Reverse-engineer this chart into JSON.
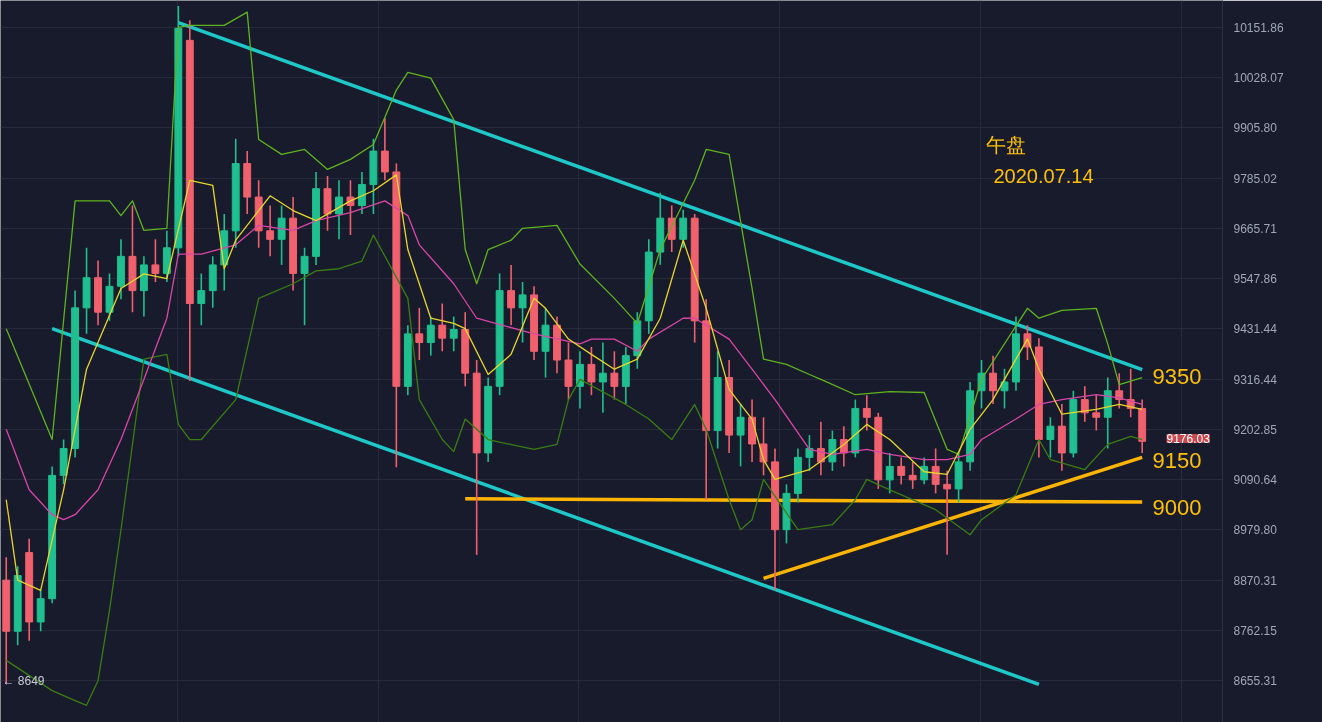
{
  "chart_data": {
    "type": "candlestick",
    "title": "午盘",
    "subtitle": "2020.07.14",
    "categories": [
      null,
      null,
      null,
      null,
      null,
      null,
      null,
      null,
      null,
      null,
      null,
      null,
      null,
      null,
      null,
      null,
      null,
      null,
      null,
      null,
      null,
      null,
      null,
      null,
      null,
      null,
      null,
      null,
      null,
      null,
      null,
      null,
      null,
      null,
      null,
      null,
      null,
      null,
      null,
      null,
      null,
      null,
      null,
      null,
      null,
      null,
      null,
      null,
      null,
      null,
      null,
      null,
      null,
      null,
      null,
      null,
      null,
      null,
      null,
      null,
      null,
      null,
      null,
      null,
      null,
      null,
      null,
      null,
      null,
      null,
      null,
      null,
      null,
      null,
      null,
      null,
      null,
      null,
      null,
      null,
      null,
      null,
      null,
      null,
      null,
      null,
      null,
      null,
      null,
      null,
      null,
      null,
      null,
      null,
      null,
      null,
      null,
      null,
      null,
      null
    ],
    "colors": [
      "#f0616d",
      "#1fbf8f",
      "#f0616d",
      "#1fbf8f",
      "#1fbf8f",
      "#1fbf8f",
      "#1fbf8f",
      "#1fbf8f",
      "#f0616d",
      "#1fbf8f",
      "#1fbf8f",
      "#f0616d",
      "#1fbf8f",
      "#f0616d",
      "#1fbf8f",
      "#1fbf8f",
      "#f0616d",
      "#1fbf8f",
      "#1fbf8f",
      "#1fbf8f",
      "#1fbf8f",
      "#f0616d",
      "#f0616d",
      "#f0616d",
      "#1fbf8f",
      "#f0616d",
      "#1fbf8f",
      "#1fbf8f",
      "#f0616d",
      "#1fbf8f",
      "#f0616d",
      "#1fbf8f",
      "#1fbf8f",
      "#f0616d",
      "#f0616d",
      "#1fbf8f",
      "#f0616d",
      "#1fbf8f",
      "#f0616d",
      "#1fbf8f",
      "#f0616d",
      "#f0616d",
      "#1fbf8f",
      "#1fbf8f",
      "#f0616d",
      "#1fbf8f",
      "#f0616d",
      "#1fbf8f",
      "#f0616d",
      "#f0616d",
      "#1fbf8f",
      "#f0616d",
      "#1fbf8f",
      "#f0616d",
      "#1fbf8f",
      "#1fbf8f",
      "#1fbf8f",
      "#1fbf8f",
      "#f0616d",
      "#1fbf8f",
      "#f0616d",
      "#f0616d",
      "#1fbf8f",
      "#f0616d",
      "#1fbf8f",
      "#f0616d",
      "#f0616d",
      "#f0616d",
      "#1fbf8f",
      "#1fbf8f",
      "#1fbf8f",
      "#f0616d",
      "#1fbf8f",
      "#f0616d",
      "#1fbf8f",
      "#f0616d",
      "#f0616d",
      "#1fbf8f",
      "#f0616d",
      "#f0616d",
      "#1fbf8f",
      "#f0616d",
      "#f0616d",
      "#1fbf8f",
      "#1fbf8f",
      "#1fbf8f",
      "#f0616d",
      "#1fbf8f",
      "#1fbf8f",
      "#f0616d",
      "#f0616d",
      "#1fbf8f",
      "#f0616d",
      "#1fbf8f",
      "#f0616d",
      "#f0616d",
      "#1fbf8f",
      "#f0616d",
      "#f0616d",
      "#f0616d"
    ],
    "ohlc": [
      [
        8870,
        8920,
        8649,
        8760
      ],
      [
        8760,
        8900,
        8730,
        8880
      ],
      [
        8930,
        8960,
        8740,
        8780
      ],
      [
        8780,
        8850,
        8760,
        8830
      ],
      [
        8830,
        9120,
        8820,
        9100
      ],
      [
        9100,
        9180,
        9080,
        9160
      ],
      [
        9160,
        9520,
        9140,
        9480
      ],
      [
        9480,
        9620,
        9420,
        9550
      ],
      [
        9550,
        9590,
        9440,
        9470
      ],
      [
        9470,
        9560,
        9450,
        9530
      ],
      [
        9530,
        9640,
        9500,
        9600
      ],
      [
        9600,
        9720,
        9470,
        9520
      ],
      [
        9520,
        9600,
        9460,
        9580
      ],
      [
        9580,
        9640,
        9540,
        9560
      ],
      [
        9560,
        9660,
        9540,
        9620
      ],
      [
        9620,
        10205,
        9600,
        10150
      ],
      [
        10120,
        10170,
        9312,
        9490
      ],
      [
        9490,
        9560,
        9440,
        9520
      ],
      [
        9520,
        9600,
        9480,
        9580
      ],
      [
        9580,
        9700,
        9520,
        9660
      ],
      [
        9660,
        9880,
        9620,
        9820
      ],
      [
        9820,
        9850,
        9700,
        9740
      ],
      [
        9740,
        9780,
        9620,
        9660
      ],
      [
        9660,
        9720,
        9600,
        9640
      ],
      [
        9640,
        9720,
        9580,
        9690
      ],
      [
        9690,
        9740,
        9520,
        9560
      ],
      [
        9560,
        9620,
        9440,
        9600
      ],
      [
        9600,
        9800,
        9580,
        9760
      ],
      [
        9760,
        9790,
        9660,
        9700
      ],
      [
        9700,
        9780,
        9640,
        9740
      ],
      [
        9740,
        9780,
        9650,
        9720
      ],
      [
        9720,
        9800,
        9700,
        9770
      ],
      [
        9770,
        9880,
        9700,
        9850
      ],
      [
        9850,
        9930,
        9780,
        9800
      ],
      [
        9800,
        9820,
        9118,
        9300
      ],
      [
        9300,
        9440,
        9280,
        9420
      ],
      [
        9420,
        9480,
        9360,
        9400
      ],
      [
        9400,
        9460,
        9370,
        9440
      ],
      [
        9440,
        9490,
        9380,
        9410
      ],
      [
        9410,
        9460,
        9380,
        9430
      ],
      [
        9430,
        9470,
        9300,
        9330
      ],
      [
        9330,
        9360,
        8925,
        9150
      ],
      [
        9150,
        9320,
        9130,
        9300
      ],
      [
        9300,
        9560,
        9280,
        9520
      ],
      [
        9520,
        9580,
        9440,
        9480
      ],
      [
        9480,
        9540,
        9400,
        9510
      ],
      [
        9510,
        9530,
        9360,
        9380
      ],
      [
        9380,
        9480,
        9320,
        9440
      ],
      [
        9440,
        9460,
        9330,
        9360
      ],
      [
        9360,
        9400,
        9270,
        9300
      ],
      [
        9300,
        9380,
        9250,
        9350
      ],
      [
        9350,
        9390,
        9280,
        9310
      ],
      [
        9310,
        9400,
        9240,
        9330
      ],
      [
        9330,
        9380,
        9270,
        9300
      ],
      [
        9300,
        9390,
        9260,
        9370
      ],
      [
        9370,
        9470,
        9340,
        9450
      ],
      [
        9450,
        9640,
        9420,
        9610
      ],
      [
        9610,
        9750,
        9580,
        9690
      ],
      [
        9690,
        9720,
        9610,
        9640
      ],
      [
        9640,
        9710,
        9620,
        9690
      ],
      [
        9690,
        9700,
        9400,
        9450
      ],
      [
        9450,
        9500,
        9046,
        9200
      ],
      [
        9200,
        9380,
        9160,
        9320
      ],
      [
        9320,
        9360,
        9150,
        9190
      ],
      [
        9190,
        9260,
        9120,
        9230
      ],
      [
        9230,
        9270,
        9130,
        9170
      ],
      [
        9170,
        9230,
        9100,
        9130
      ],
      [
        9130,
        9160,
        8848,
        8980
      ],
      [
        8980,
        9080,
        8950,
        9060
      ],
      [
        9060,
        9160,
        9040,
        9140
      ],
      [
        9140,
        9190,
        9110,
        9160
      ],
      [
        9160,
        9220,
        9100,
        9130
      ],
      [
        9130,
        9200,
        9110,
        9180
      ],
      [
        9180,
        9210,
        9120,
        9150
      ],
      [
        9150,
        9270,
        9140,
        9250
      ],
      [
        9250,
        9280,
        9200,
        9230
      ],
      [
        9230,
        9240,
        9070,
        9090
      ],
      [
        9090,
        9150,
        9060,
        9120
      ],
      [
        9120,
        9140,
        9080,
        9100
      ],
      [
        9100,
        9130,
        9070,
        9090
      ],
      [
        9090,
        9140,
        9080,
        9120
      ],
      [
        9120,
        9160,
        9060,
        9080
      ],
      [
        9080,
        9110,
        8925,
        9070
      ],
      [
        9070,
        9150,
        9040,
        9130
      ],
      [
        9130,
        9310,
        9110,
        9290
      ],
      [
        9290,
        9360,
        9250,
        9330
      ],
      [
        9330,
        9370,
        9260,
        9290
      ],
      [
        9290,
        9340,
        9250,
        9310
      ],
      [
        9310,
        9460,
        9290,
        9420
      ],
      [
        9420,
        9440,
        9360,
        9390
      ],
      [
        9390,
        9410,
        9140,
        9180
      ],
      [
        9180,
        9230,
        9140,
        9210
      ],
      [
        9210,
        9260,
        9110,
        9150
      ],
      [
        9150,
        9290,
        9140,
        9270
      ],
      [
        9270,
        9300,
        9220,
        9240
      ],
      [
        9240,
        9280,
        9200,
        9230
      ],
      [
        9230,
        9320,
        9160,
        9290
      ],
      [
        9290,
        9330,
        9250,
        9270
      ],
      [
        9270,
        9340,
        9230,
        9250
      ],
      [
        9250,
        9270,
        9150,
        9176.03
      ]
    ],
    "series": [
      {
        "type": "line",
        "color": "#5fb31f",
        "values": [
          9432,
          null,
          null,
          null,
          9180,
          null,
          9731,
          null,
          null,
          9731,
          9696,
          9731,
          9661,
          null,
          9666,
          10152,
          10157,
          null,
          null,
          10157,
          null,
          10190,
          9878,
          null,
          9842,
          null,
          9854,
          null,
          9806,
          null,
          9830,
          null,
          9866,
          null,
          9998,
          10041,
          null,
          10027,
          null,
          9926,
          9616,
          9536,
          9616,
          null,
          9638,
          9666,
          null,
          null,
          9673,
          null,
          9582,
          null,
          null,
          9502,
          null,
          9444,
          null,
          9616,
          null,
          null,
          9780,
          9854,
          null,
          9842,
          null,
          9525,
          9362,
          null,
          9350,
          null,
          9327,
          9316,
          null,
          null,
          9281,
          null,
          null,
          9288,
          null,
          null,
          9286,
          null,
          9158,
          9147,
          null,
          9316,
          null,
          null,
          null,
          9479,
          9456,
          null,
          9474,
          null,
          null,
          9479,
          9397,
          9304,
          null,
          9320
        ]
      },
      {
        "type": "line",
        "color": "#3a7d12",
        "values": [
          8698,
          null,
          null,
          null,
          8634,
          null,
          8613,
          8603,
          8655,
          8805,
          8980,
          null,
          9362,
          null,
          9373,
          9214,
          9180,
          9180,
          null,
          null,
          9270,
          null,
          9502,
          null,
          null,
          9536,
          null,
          9566,
          null,
          9571,
          null,
          9589,
          9650,
          null,
          null,
          9502,
          9270,
          null,
          9180,
          9153,
          9226,
          null,
          9180,
          9174,
          null,
          null,
          9158,
          null,
          9169,
          9270,
          9316,
          null,
          null,
          null,
          9259,
          null,
          9226,
          null,
          9180,
          null,
          9259,
          9203,
          null,
          9046,
          8980,
          9002,
          9091,
          null,
          null,
          8980,
          null,
          null,
          8991,
          null,
          9046,
          9091,
          null,
          9068,
          null,
          null,
          null,
          9024,
          null,
          null,
          8969,
          9002,
          null,
          null,
          9057,
          null,
          9180,
          9135,
          null,
          null,
          9113,
          null,
          9169,
          null,
          9187,
          9180
        ]
      },
      {
        "type": "line",
        "color": "#d946a8",
        "values": [
          9203,
          null,
          9068,
          null,
          9013,
          9002,
          9013,
          null,
          9068,
          null,
          9180,
          null,
          9316,
          null,
          9456,
          9605,
          null,
          9605,
          null,
          null,
          9627,
          null,
          9673,
          null,
          null,
          9661,
          null,
          9684,
          null,
          null,
          9703,
          null,
          null,
          9731,
          null,
          9696,
          9627,
          null,
          null,
          9536,
          null,
          9456,
          null,
          null,
          null,
          null,
          9420,
          null,
          null,
          null,
          9397,
          9408,
          null,
          9408,
          null,
          9380,
          9408,
          null,
          null,
          9456,
          9456,
          null,
          null,
          9408,
          null,
          9339,
          null,
          9270,
          null,
          null,
          9158,
          null,
          9147,
          null,
          null,
          9158,
          null,
          9147,
          null,
          null,
          9135,
          null,
          9135,
          null,
          9147,
          9180,
          null,
          null,
          9226,
          null,
          9259,
          null,
          9270,
          null,
          null,
          9281,
          null,
          9274,
          null,
          9259
        ]
      },
      {
        "type": "line",
        "color": "#e8d52a",
        "values": [
          9046,
          8870,
          null,
          8848,
          null,
          9068,
          null,
          9339,
          null,
          null,
          9525,
          null,
          9559,
          null,
          9548,
          null,
          9780,
          null,
          9768,
          9571,
          9638,
          null,
          null,
          9743,
          null,
          9708,
          null,
          9684,
          null,
          null,
          9731,
          null,
          9755,
          null,
          9793,
          9616,
          null,
          9456,
          null,
          9444,
          9432,
          null,
          9327,
          null,
          9373,
          null,
          9502,
          9479,
          null,
          9408,
          null,
          9373,
          null,
          9339,
          null,
          9362,
          null,
          9456,
          null,
          9638,
          null,
          9479,
          null,
          9293,
          null,
          9226,
          9135,
          9091,
          null,
          null,
          9113,
          null,
          null,
          9169,
          null,
          9214,
          null,
          9180,
          null,
          null,
          9108,
          null,
          9102,
          null,
          9203,
          null,
          9270,
          null,
          null,
          9408,
          9339,
          null,
          9237,
          null,
          null,
          9248,
          null,
          9259,
          null,
          9248
        ]
      },
      {
        "type": "line",
        "color": "#1fc8c8",
        "values": [
          null,
          null,
          null,
          null,
          null,
          null,
          null,
          null,
          null,
          null,
          null,
          null,
          null,
          null,
          null,
          10164,
          null,
          null,
          null,
          null,
          null,
          null,
          null,
          null,
          null,
          null,
          null,
          null,
          null,
          null,
          null,
          null,
          null,
          null,
          null,
          null,
          null,
          null,
          null,
          null,
          null,
          null,
          null,
          null,
          null,
          null,
          null,
          null,
          null,
          null,
          null,
          null,
          null,
          null,
          null,
          null,
          null,
          null,
          null,
          null,
          null,
          null,
          null,
          null,
          null,
          null,
          null,
          null,
          null,
          null,
          null,
          null,
          null,
          null,
          null,
          null,
          null,
          null,
          null,
          null,
          null,
          null,
          null,
          null,
          null,
          null,
          null,
          null,
          null,
          null,
          null,
          null,
          null,
          null,
          null,
          null,
          null,
          null,
          null,
          9338
        ]
      },
      {
        "type": "line",
        "color": "#1fc8c8",
        "values": [
          null,
          null,
          null,
          null,
          9432,
          null,
          null,
          null,
          null,
          null,
          null,
          null,
          null,
          null,
          null,
          null,
          null,
          null,
          null,
          null,
          null,
          null,
          null,
          null,
          null,
          null,
          null,
          null,
          null,
          null,
          null,
          null,
          null,
          null,
          null,
          null,
          null,
          null,
          null,
          null,
          null,
          null,
          null,
          null,
          null,
          null,
          null,
          null,
          null,
          null,
          null,
          null,
          null,
          null,
          null,
          null,
          null,
          null,
          null,
          null,
          null,
          null,
          null,
          null,
          null,
          null,
          null,
          null,
          null,
          null,
          null,
          null,
          null,
          null,
          null,
          null,
          null,
          null,
          null,
          null,
          null,
          null,
          null,
          null,
          null,
          null,
          null,
          null,
          null,
          null,
          8647,
          null,
          null,
          null,
          null,
          null,
          null,
          null,
          null,
          null
        ]
      },
      {
        "type": "line",
        "color": "#ffb400",
        "values": [
          null,
          null,
          null,
          null,
          null,
          null,
          null,
          null,
          null,
          null,
          null,
          null,
          null,
          null,
          null,
          null,
          null,
          null,
          null,
          null,
          null,
          null,
          null,
          null,
          null,
          null,
          null,
          null,
          null,
          null,
          null,
          null,
          null,
          null,
          null,
          null,
          null,
          null,
          null,
          null,
          9048,
          null,
          null,
          null,
          null,
          null,
          null,
          null,
          null,
          null,
          null,
          null,
          null,
          null,
          null,
          null,
          null,
          null,
          null,
          null,
          null,
          null,
          null,
          null,
          null,
          null,
          null,
          null,
          null,
          null,
          null,
          null,
          null,
          null,
          null,
          null,
          null,
          null,
          null,
          null,
          null,
          null,
          null,
          null,
          null,
          null,
          null,
          null,
          null,
          null,
          null,
          null,
          null,
          null,
          null,
          null,
          null,
          null,
          null,
          9041
        ]
      },
      {
        "type": "line",
        "color": "#ffb400",
        "values": [
          null,
          null,
          null,
          null,
          null,
          null,
          null,
          null,
          null,
          null,
          null,
          null,
          null,
          null,
          null,
          null,
          null,
          null,
          null,
          null,
          null,
          null,
          null,
          null,
          null,
          null,
          null,
          null,
          null,
          null,
          null,
          null,
          null,
          null,
          null,
          null,
          null,
          null,
          null,
          null,
          null,
          null,
          null,
          null,
          null,
          null,
          null,
          null,
          null,
          null,
          null,
          null,
          null,
          null,
          null,
          null,
          null,
          null,
          null,
          null,
          null,
          null,
          null,
          null,
          null,
          null,
          8874,
          null,
          null,
          null,
          null,
          null,
          null,
          null,
          null,
          null,
          null,
          null,
          null,
          null,
          null,
          null,
          null,
          null,
          null,
          null,
          null,
          null,
          null,
          null,
          null,
          null,
          null,
          null,
          null,
          null,
          null,
          null,
          null,
          9140
        ]
      }
    ],
    "ylim": [
      8567,
      10219
    ],
    "yticks": [
      10151.86,
      10028.07,
      {
        "value": 9905.8,
        "label": "9905.80"
      },
      9785.02,
      9665.71,
      9547.86,
      9431.44,
      9316.44,
      9202.85,
      9090.64,
      {
        "value": 8979.8,
        "label": "8979.80"
      },
      8870.31,
      8762.15,
      8655.31
    ],
    "log": "y",
    "grid": true,
    "tick_labels": "y",
    "annotations": [
      "9350",
      "9150",
      "9000",
      "9176.03",
      "← 8649"
    ]
  }
}
